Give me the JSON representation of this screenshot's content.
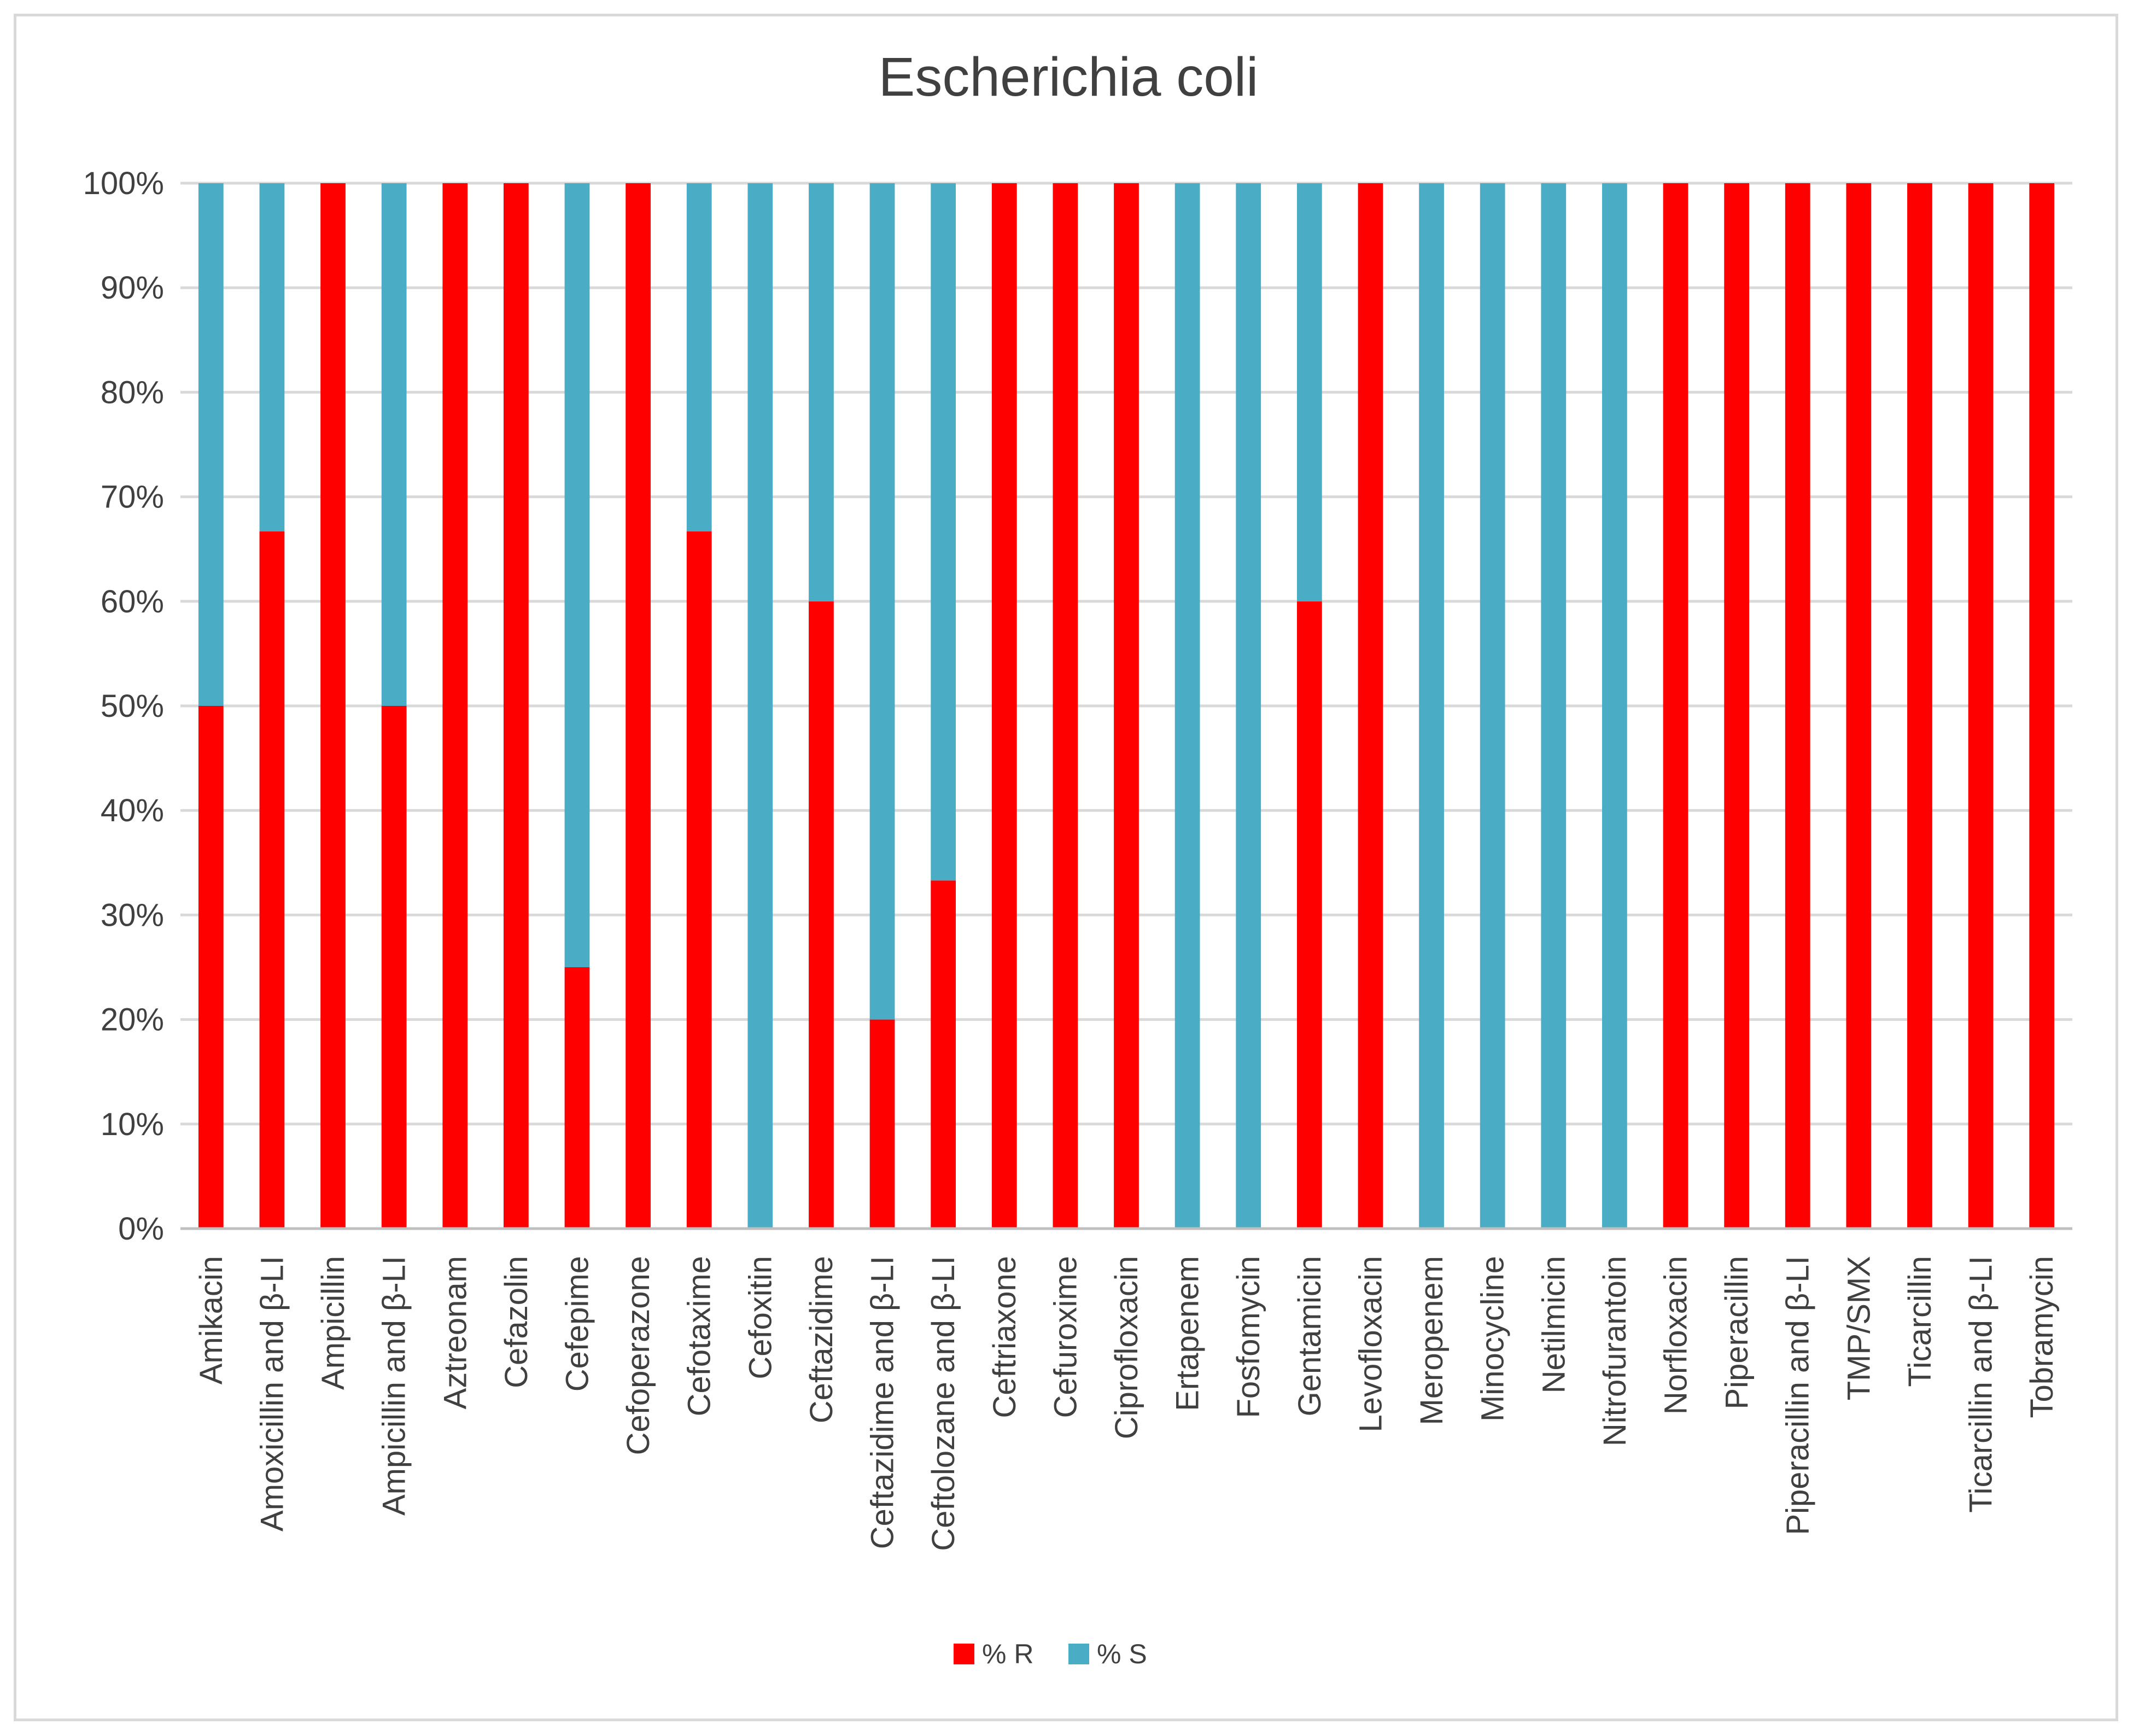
{
  "chart_data": {
    "type": "bar",
    "stacked": true,
    "normalized": true,
    "title": "Escherichia coli",
    "xlabel": "",
    "ylabel": "",
    "ylim": [
      0,
      100
    ],
    "yticks": [
      "0%",
      "10%",
      "20%",
      "30%",
      "40%",
      "50%",
      "60%",
      "70%",
      "80%",
      "90%",
      "100%"
    ],
    "gridlines": true,
    "legend_position": "bottom",
    "categories": [
      "Amikacin",
      "Amoxicillin and β-LI",
      "Ampicillin",
      "Ampicillin and β-LI",
      "Aztreonam",
      "Cefazolin",
      "Cefepime",
      "Cefoperazone",
      "Cefotaxime",
      "Cefoxitin",
      "Ceftazidime",
      "Ceftazidime and β-LI",
      "Ceftolozane and β-LI",
      "Ceftriaxone",
      "Cefuroxime",
      "Ciprofloxacin",
      "Ertapenem",
      "Fosfomycin",
      "Gentamicin",
      "Levofloxacin",
      "Meropenem",
      "Minocycline",
      "Netilmicin",
      "Nitrofurantoin",
      "Norfloxacin",
      "Piperacillin",
      "Piperacillin and β-LI",
      "TMP/SMX",
      "Ticarcillin",
      "Ticarcillin and β-LI",
      "Tobramycin"
    ],
    "series": [
      {
        "name": "% R",
        "color": "#ff0000",
        "values": [
          50,
          66.7,
          100,
          50,
          100,
          100,
          25,
          100,
          66.7,
          0,
          60,
          20,
          33.3,
          100,
          100,
          100,
          0,
          0,
          60,
          100,
          0,
          0,
          0,
          0,
          100,
          100,
          100,
          100,
          100,
          100,
          100
        ]
      },
      {
        "name": "% S",
        "color": "#4bacc6",
        "values": [
          50,
          33.3,
          0,
          50,
          0,
          0,
          75,
          0,
          33.3,
          100,
          40,
          80,
          66.7,
          0,
          0,
          0,
          100,
          100,
          40,
          0,
          100,
          100,
          100,
          100,
          0,
          0,
          0,
          0,
          0,
          0,
          0
        ]
      }
    ]
  }
}
